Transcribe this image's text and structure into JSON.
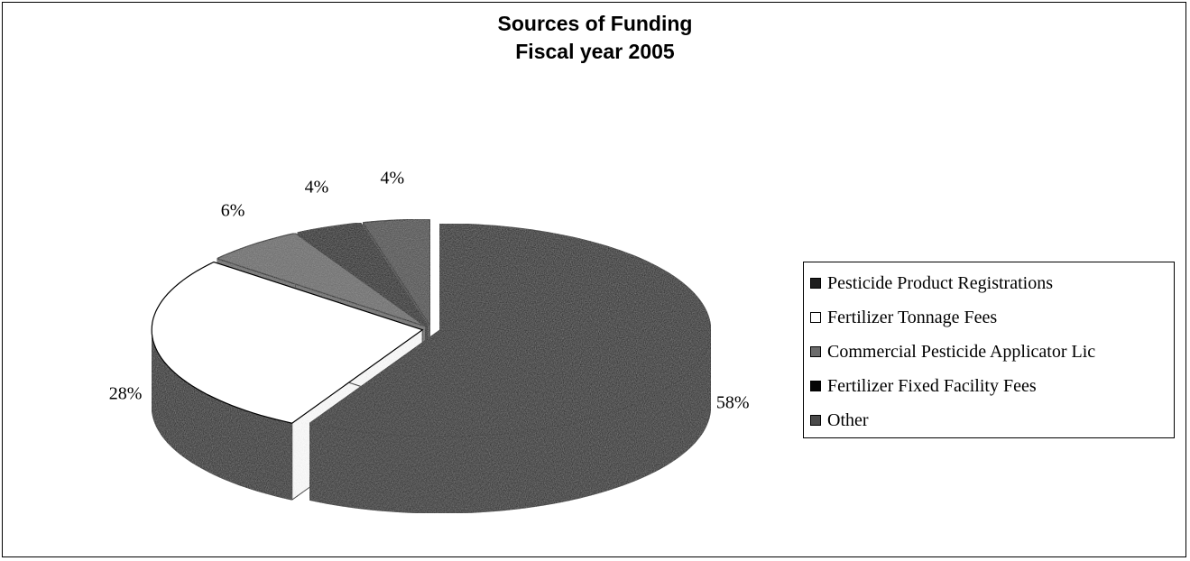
{
  "chart_data": {
    "type": "pie",
    "title": "Sources of Funding",
    "subtitle": "Fiscal year 2005",
    "categories": [
      "Pesticide Product Registrations",
      "Fertilizer Tonnage Fees",
      "Commercial Pesticide Applicator Lic",
      "Fertilizer Fixed Facility Fees",
      "Other"
    ],
    "values": [
      58,
      28,
      6,
      4,
      4
    ],
    "value_labels": [
      "58%",
      "28%",
      "6%",
      "4%",
      "4%"
    ],
    "colors": [
      "#1f1f1f",
      "#ffffff",
      "#6b6b6b",
      "#050505",
      "#4a4a4a"
    ],
    "legend_position": "right",
    "style": "3d-exploded-tilted"
  }
}
